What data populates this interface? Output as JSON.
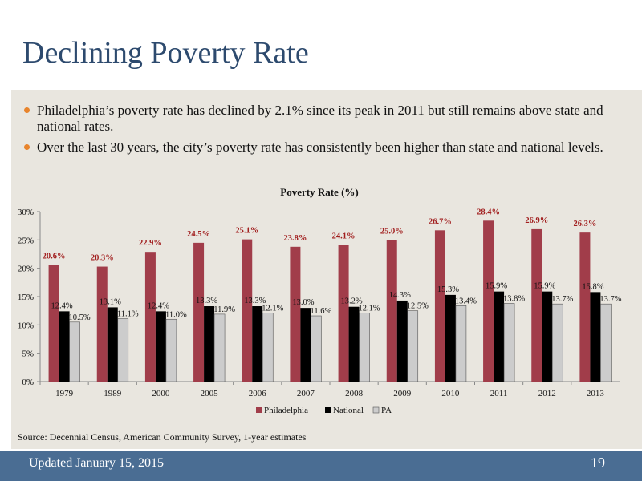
{
  "slide": {
    "title": "Declining Poverty Rate",
    "bullets": [
      "Philadelphia’s poverty rate has declined by 2.1% since its peak in 2011 but still remains above state and national rates.",
      "Over the last 30 years, the city’s poverty rate has consistently been higher than state and national levels."
    ],
    "source": "Source: Decennial Census, American Community Survey, 1-year estimates",
    "footer": "Updated January 15, 2015",
    "page_number": "19"
  },
  "colors": {
    "title": "#2d4a6e",
    "bullet_dot": "#e8842c",
    "background": "#e9e6df",
    "footer": "#4a6d93",
    "philadelphia": "#a13d4a",
    "national": "#000000",
    "pa": "#cccccc",
    "philadelphia_label": "#a11e1e"
  },
  "chart_data": {
    "type": "bar",
    "title": "Poverty Rate (%)",
    "xlabel": "",
    "ylabel": "",
    "ylim": [
      0,
      30
    ],
    "yticks": [
      "0%",
      "5%",
      "10%",
      "15%",
      "20%",
      "25%",
      "30%"
    ],
    "ytick_values": [
      0,
      5,
      10,
      15,
      20,
      25,
      30
    ],
    "legend_position": "bottom",
    "categories": [
      "1979",
      "1989",
      "2000",
      "2005",
      "2006",
      "2007",
      "2008",
      "2009",
      "2010",
      "2011",
      "2012",
      "2013"
    ],
    "series": [
      {
        "name": "Philadelphia",
        "values": [
          20.6,
          20.3,
          22.9,
          24.5,
          25.1,
          23.8,
          24.1,
          25.0,
          26.7,
          28.4,
          26.9,
          26.3
        ],
        "labels": [
          "20.6%",
          "20.3%",
          "22.9%",
          "24.5%",
          "25.1%",
          "23.8%",
          "24.1%",
          "25.0%",
          "26.7%",
          "28.4%",
          "26.9%",
          "26.3%"
        ]
      },
      {
        "name": "National",
        "values": [
          12.4,
          13.1,
          12.4,
          13.3,
          13.3,
          13.0,
          13.2,
          14.3,
          15.3,
          15.9,
          15.9,
          15.8
        ],
        "labels": [
          "12.4%",
          "13.1%",
          "12.4%",
          "13.3%",
          "13.3%",
          "13.0%",
          "13.2%",
          "14.3%",
          "15.3%",
          "15.9%",
          "15.9%",
          "15.8%"
        ]
      },
      {
        "name": "PA",
        "values": [
          10.5,
          11.1,
          11.0,
          11.9,
          12.1,
          11.6,
          12.1,
          12.5,
          13.4,
          13.8,
          13.7,
          13.7
        ],
        "labels": [
          "10.5%",
          "11.1%",
          "11.0%",
          "11.9%",
          "12.1%",
          "11.6%",
          "12.1%",
          "12.5%",
          "13.4%",
          "13.8%",
          "13.7%",
          "13.7%"
        ]
      }
    ]
  }
}
